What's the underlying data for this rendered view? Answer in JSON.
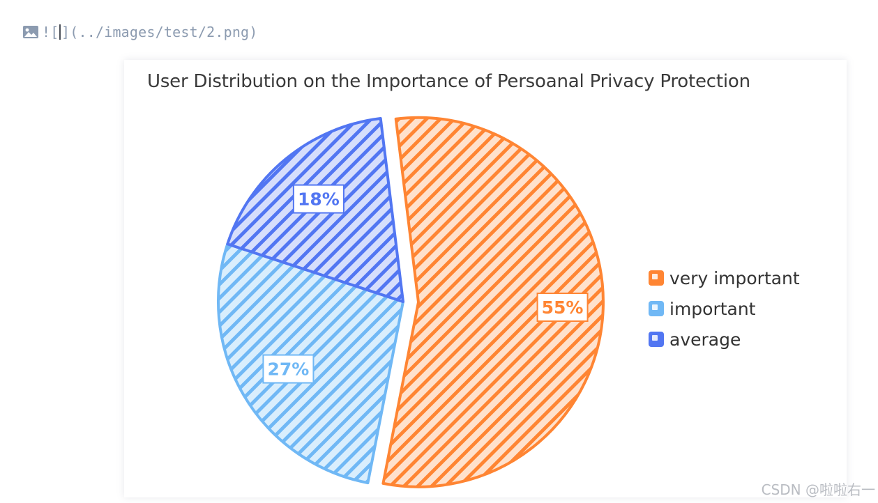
{
  "editor": {
    "markdown_prefix": "![",
    "markdown_bracket_close": "]",
    "markdown_path": "(../images/test/2.png)"
  },
  "chart_data": {
    "type": "pie",
    "title": "User Distribution on the Importance of Persoanal Privacy Protection",
    "categories": [
      "very important",
      "important",
      "average"
    ],
    "values": [
      55,
      27,
      18
    ],
    "labels": [
      "55%",
      "27%",
      "18%"
    ],
    "colors": [
      "#ff8533",
      "#70b8f5",
      "#5276f2"
    ],
    "fill_colors": [
      "#ffe1cc",
      "#d9eefd",
      "#d6defc"
    ],
    "legend": "right",
    "start_angle_deg": -7,
    "exploded": "very important",
    "pattern": "diagonal-stripes"
  },
  "watermark": "CSDN @啦啦右一"
}
